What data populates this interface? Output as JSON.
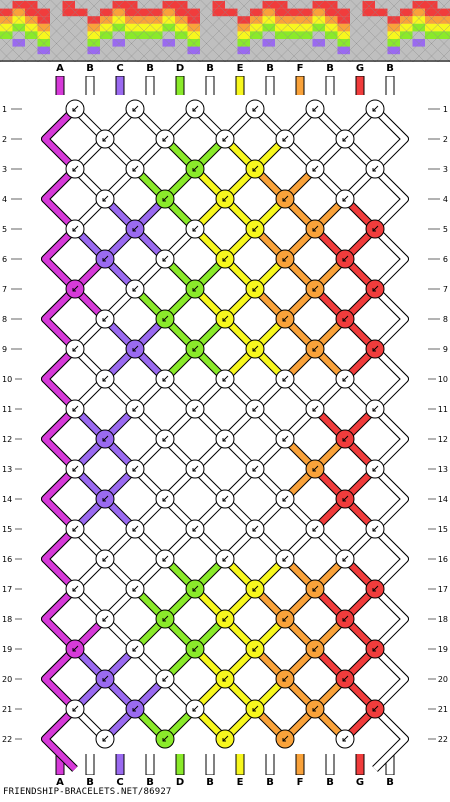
{
  "pattern": {
    "columns": [
      "A",
      "B",
      "C",
      "B",
      "D",
      "B",
      "E",
      "B",
      "F",
      "B",
      "G",
      "B"
    ],
    "colors": {
      "A": "#d63ad8",
      "B": "#ffffff",
      "C": "#9a6af0",
      "D": "#8aea2a",
      "E": "#f7f71e",
      "F": "#f9a23a",
      "G": "#f03c3c"
    },
    "row_numbers": [
      "1",
      "2",
      "3",
      "4",
      "5",
      "6",
      "7",
      "8",
      "9",
      "10",
      "11",
      "12",
      "13",
      "14",
      "15",
      "16",
      "17",
      "18",
      "19",
      "20",
      "21",
      "22"
    ],
    "knot_colors": [
      [
        "B",
        "B",
        "B",
        "B",
        "B",
        "B"
      ],
      [
        "B",
        "B",
        "B",
        "B",
        "B"
      ],
      [
        "B",
        "B",
        "D",
        "E",
        "B",
        "B"
      ],
      [
        "B",
        "D",
        "E",
        "F",
        "B"
      ],
      [
        "B",
        "C",
        "B",
        "E",
        "F",
        "G"
      ],
      [
        "C",
        "B",
        "E",
        "F",
        "G"
      ],
      [
        "A",
        "B",
        "D",
        "E",
        "F",
        "G"
      ],
      [
        "B",
        "D",
        "E",
        "F",
        "G"
      ],
      [
        "B",
        "C",
        "D",
        "E",
        "F",
        "G"
      ],
      [
        "B",
        "B",
        "B",
        "B",
        "B"
      ],
      [
        "B",
        "B",
        "B",
        "B",
        "B",
        "B"
      ],
      [
        "C",
        "B",
        "B",
        "B",
        "G"
      ],
      [
        "B",
        "B",
        "B",
        "B",
        "F",
        "B"
      ],
      [
        "C",
        "B",
        "B",
        "B",
        "G"
      ],
      [
        "B",
        "B",
        "B",
        "B",
        "B",
        "B"
      ],
      [
        "B",
        "B",
        "B",
        "B",
        "B"
      ],
      [
        "B",
        "B",
        "D",
        "E",
        "F",
        "G"
      ],
      [
        "B",
        "D",
        "E",
        "F",
        "G"
      ],
      [
        "A",
        "B",
        "D",
        "E",
        "F",
        "G"
      ],
      [
        "C",
        "B",
        "E",
        "F",
        "G"
      ],
      [
        "B",
        "C",
        "B",
        "E",
        "F",
        "G"
      ],
      [
        "B",
        "D",
        "E",
        "F",
        "B"
      ]
    ],
    "preview_rows": [
      "XGGXXGXXXGGXXGGXXGXXXGGXXGGXXGXXXGGX",
      "GFGGXGGXGFGGGFGGXGGXGFGGGFGGXGGXGFGG",
      "FEFGXXXGFEFFFEFGXXXGFEFFFEFGXXXGFEFF",
      "EDEFXXXFEDEEEDEFXXXFEDEEEDEFXXXFEDEE",
      "DXDEXXXEDXDDDXDEXXXEDXDDDXDEXXXEDXDD",
      "XCXDXXXDXCXXXCXDXXXDXCXXXCXDXXXDXCXX",
      "XXXCXXXCXXXXXXXCXXXCXXXXXXXCXXXCXXXX",
      "XXXXXXXXXXXXXXXXXXXXXXXXXXXXXXXXXXXX"
    ],
    "credit": "FRIENDSHIP-BRACELETS.NET/86927"
  }
}
